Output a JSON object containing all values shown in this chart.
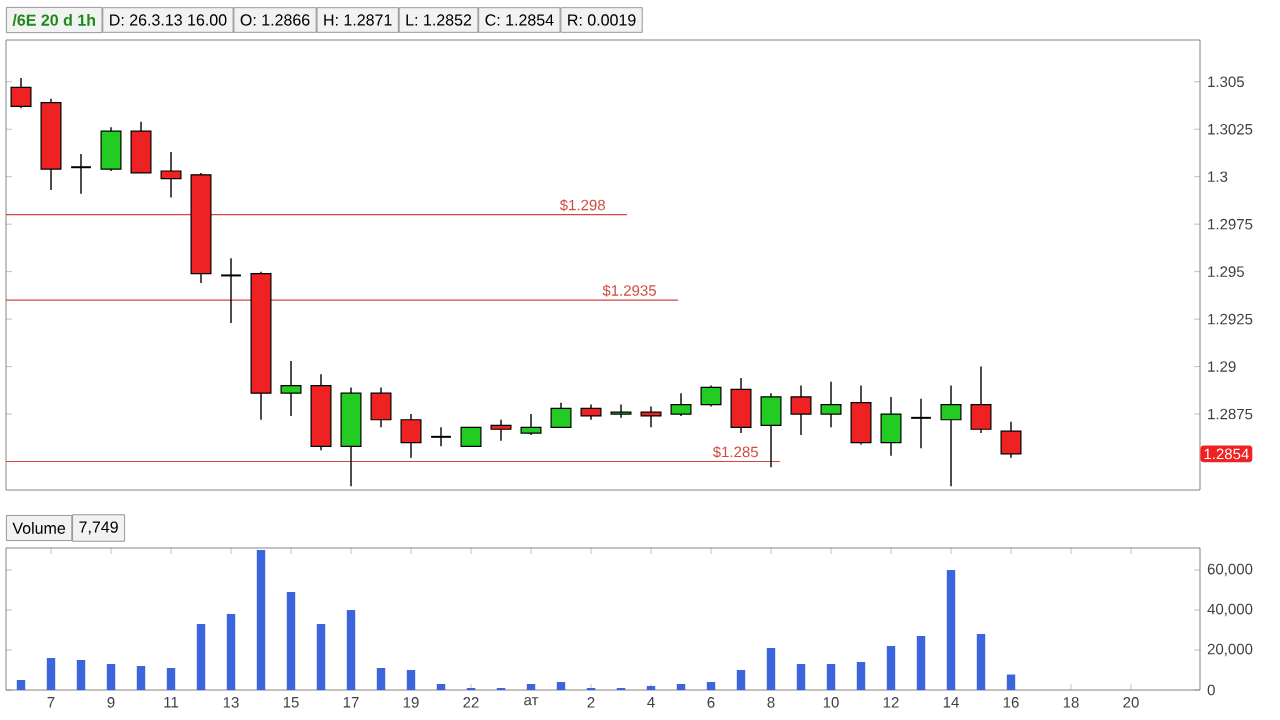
{
  "chart_data": [
    {
      "type": "candlestick",
      "ohlc": [
        [
          1.3047,
          1.3052,
          1.3036,
          1.3037
        ],
        [
          1.3039,
          1.3041,
          1.2993,
          1.3004
        ],
        [
          1.3005,
          1.3012,
          1.2991,
          1.3005
        ],
        [
          1.3004,
          1.3026,
          1.3003,
          1.3024
        ],
        [
          1.3024,
          1.3029,
          1.3002,
          1.3002
        ],
        [
          1.3003,
          1.3013,
          1.2989,
          1.2999
        ],
        [
          1.3001,
          1.3002,
          1.2944,
          1.2949
        ],
        [
          1.2948,
          1.2957,
          1.2923,
          1.2948
        ],
        [
          1.2949,
          1.295,
          1.2872,
          1.2886
        ],
        [
          1.2886,
          1.2903,
          1.2874,
          1.289
        ],
        [
          1.289,
          1.2896,
          1.2856,
          1.2858
        ],
        [
          1.2858,
          1.2889,
          1.2837,
          1.2886
        ],
        [
          1.2886,
          1.2889,
          1.2868,
          1.2872
        ],
        [
          1.2872,
          1.2875,
          1.2852,
          1.286
        ],
        [
          1.2863,
          1.2868,
          1.2858,
          1.2863
        ],
        [
          1.2858,
          1.2868,
          1.2858,
          1.2868
        ],
        [
          1.2869,
          1.2872,
          1.2861,
          1.2867
        ],
        [
          1.2865,
          1.2875,
          1.2864,
          1.2868
        ],
        [
          1.2868,
          1.2881,
          1.2868,
          1.2878
        ],
        [
          1.2878,
          1.288,
          1.2872,
          1.2874
        ],
        [
          1.2875,
          1.288,
          1.2873,
          1.2876
        ],
        [
          1.2876,
          1.2879,
          1.2868,
          1.2874
        ],
        [
          1.2875,
          1.2886,
          1.2874,
          1.288
        ],
        [
          1.288,
          1.289,
          1.2879,
          1.2889
        ],
        [
          1.2888,
          1.2894,
          1.2865,
          1.2868
        ],
        [
          1.2869,
          1.2886,
          1.2847,
          1.2884
        ],
        [
          1.2884,
          1.289,
          1.2864,
          1.2875
        ],
        [
          1.2875,
          1.2892,
          1.2868,
          1.288
        ],
        [
          1.2881,
          1.289,
          1.2859,
          1.286
        ],
        [
          1.286,
          1.2884,
          1.2853,
          1.2875
        ],
        [
          1.2873,
          1.2883,
          1.2857,
          1.2873
        ],
        [
          1.2872,
          1.289,
          1.2837,
          1.288
        ],
        [
          1.288,
          1.29,
          1.2865,
          1.2867
        ],
        [
          1.2866,
          1.2871,
          1.2852,
          1.2854
        ],
        null,
        null,
        null,
        null
      ],
      "ylim": [
        1.2835,
        1.3072
      ],
      "yticks": [
        1.2875,
        1.29,
        1.2925,
        1.295,
        1.2975,
        1.3,
        1.3025,
        1.305
      ],
      "ref_lines": [
        {
          "axis": "y",
          "value": 1.298,
          "label": "$1.298",
          "color": "#d04a40"
        },
        {
          "axis": "y",
          "value": 1.2935,
          "label": "$1.2935",
          "color": "#d04a40"
        },
        {
          "axis": "y",
          "value": 1.285,
          "label": "$1.285",
          "color": "#d04a40"
        }
      ],
      "annotations": [
        "/6E 20 d 1h",
        "D: 26.3.13 16.00",
        "O: 1.2866",
        "H: 1.2871",
        "L: 1.2852",
        "C: 1.2854",
        "R: 0.0019",
        "1.2854"
      ]
    },
    {
      "type": "bar",
      "title": "Volume",
      "categories": [
        null,
        "7",
        null,
        "9",
        null,
        "11",
        null,
        "13",
        null,
        "15",
        null,
        "17",
        null,
        "19",
        null,
        "22",
        null,
        "ат",
        null,
        "2",
        null,
        "4",
        null,
        "6",
        null,
        "8",
        null,
        "10",
        null,
        "12",
        null,
        "14",
        null,
        "16",
        null,
        "18",
        null,
        "20"
      ],
      "values": [
        5000,
        16000,
        15000,
        13000,
        12000,
        11000,
        33000,
        38000,
        70000,
        49000,
        33000,
        40000,
        11000,
        10000,
        3000,
        1000,
        1000,
        3000,
        4000,
        1000,
        1000,
        2000,
        3000,
        4000,
        10000,
        21000,
        13000,
        13000,
        14000,
        22000,
        27000,
        60000,
        28000,
        7749,
        null,
        null,
        null,
        null
      ],
      "color": "#3c64dc",
      "ylim": [
        0,
        71000
      ],
      "yticks": [
        0,
        {
          "value": 20000,
          "label": "20,000"
        },
        {
          "value": 40000,
          "label": "40,000"
        },
        {
          "value": 60000,
          "label": "60,000"
        }
      ],
      "annotations": [
        "7,749"
      ]
    }
  ]
}
